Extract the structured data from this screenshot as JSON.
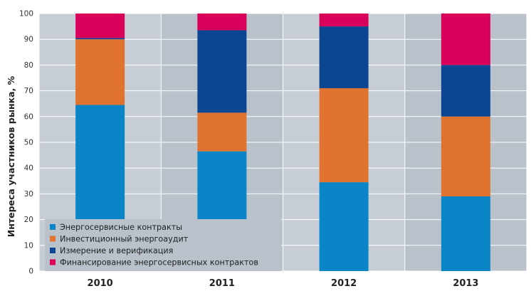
{
  "chart_data": {
    "type": "bar",
    "stacked": true,
    "categories": [
      "2010",
      "2011",
      "2012",
      "2013"
    ],
    "ylabel": "Интереса участников рынка, %",
    "ylim": [
      0,
      100
    ],
    "yticks": [
      0,
      10,
      20,
      30,
      40,
      50,
      60,
      70,
      80,
      90,
      100
    ],
    "grid": true,
    "legend_position": "bottom-left",
    "series": [
      {
        "name": "Энергосервисные контракты",
        "color": "#0a86c8",
        "values": [
          64.5,
          46.5,
          34.5,
          29
        ]
      },
      {
        "name": "Инвестиционный энергоаудит",
        "color": "#e07330",
        "values": [
          25.5,
          15,
          36.5,
          31
        ]
      },
      {
        "name": "Измерение и верификация",
        "color": "#0c4693",
        "values": [
          0.5,
          32,
          24,
          20
        ]
      },
      {
        "name": "Финансирование энергосервисных контрактов",
        "color": "#d8005a",
        "values": [
          9.5,
          6.5,
          5,
          20
        ]
      }
    ],
    "colors": {
      "plot_background": "#c6cdd5",
      "band_dark": "#b9c1ca",
      "grid": "#ffffff",
      "text": "#222222"
    }
  }
}
